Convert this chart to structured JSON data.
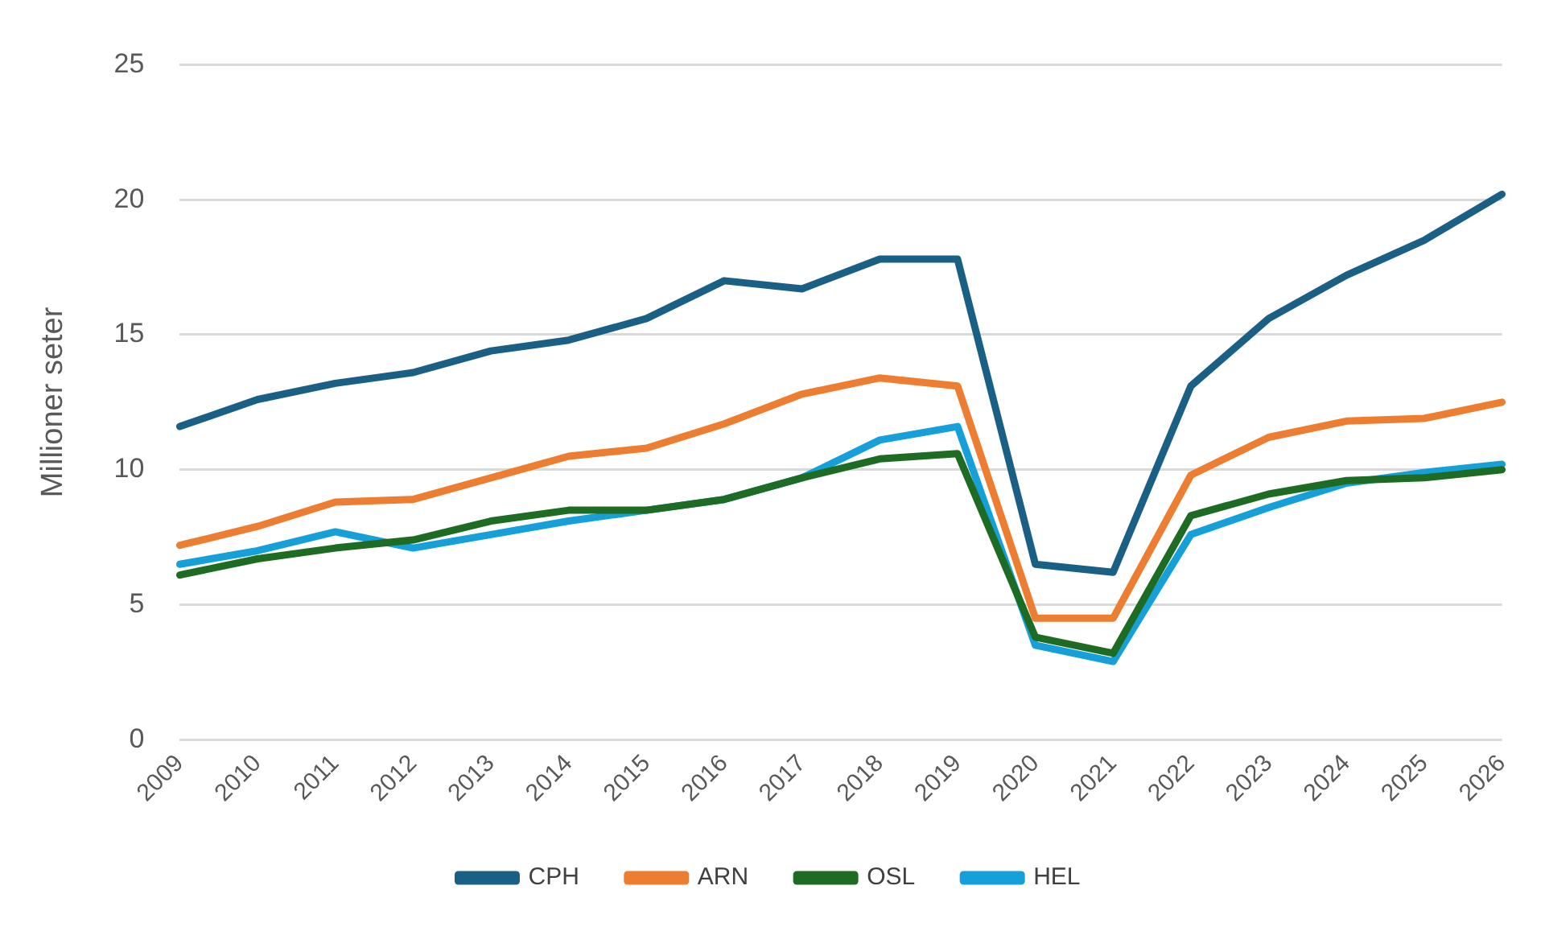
{
  "chart_data": {
    "type": "line",
    "ylabel": "Millioner seter",
    "categories": [
      "2009",
      "2010",
      "2011",
      "2012",
      "2013",
      "2014",
      "2015",
      "2016",
      "2017",
      "2018",
      "2019",
      "2020",
      "2021",
      "2022",
      "2023",
      "2024",
      "2025",
      "2026"
    ],
    "series": [
      {
        "name": "CPH",
        "color": "#1a5f84",
        "values": [
          11.6,
          12.6,
          13.2,
          13.6,
          14.4,
          14.8,
          15.6,
          17.0,
          16.7,
          17.8,
          17.8,
          6.5,
          6.2,
          13.1,
          15.6,
          17.2,
          18.5,
          20.2
        ]
      },
      {
        "name": "ARN",
        "color": "#ed7d31",
        "values": [
          7.2,
          7.9,
          8.8,
          8.9,
          9.7,
          10.5,
          10.8,
          11.7,
          12.8,
          13.4,
          13.1,
          4.5,
          4.5,
          9.8,
          11.2,
          11.8,
          11.9,
          12.5
        ]
      },
      {
        "name": "OSL",
        "color": "#1e6b24",
        "values": [
          6.1,
          6.7,
          7.1,
          7.4,
          8.1,
          8.5,
          8.5,
          8.9,
          9.7,
          10.4,
          10.6,
          3.8,
          3.2,
          8.3,
          9.1,
          9.6,
          9.7,
          10.0
        ]
      },
      {
        "name": "HEL",
        "color": "#16a0d9",
        "values": [
          6.5,
          7.0,
          7.7,
          7.1,
          7.6,
          8.1,
          8.5,
          8.9,
          9.7,
          11.1,
          11.6,
          3.5,
          2.9,
          7.6,
          8.6,
          9.5,
          9.9,
          10.2
        ]
      }
    ],
    "ylim": [
      0,
      25
    ],
    "yticks": [
      0,
      5,
      10,
      15,
      20,
      25
    ],
    "grid": "y",
    "legend": "bottom",
    "marker": "none",
    "line_style": "solid"
  }
}
